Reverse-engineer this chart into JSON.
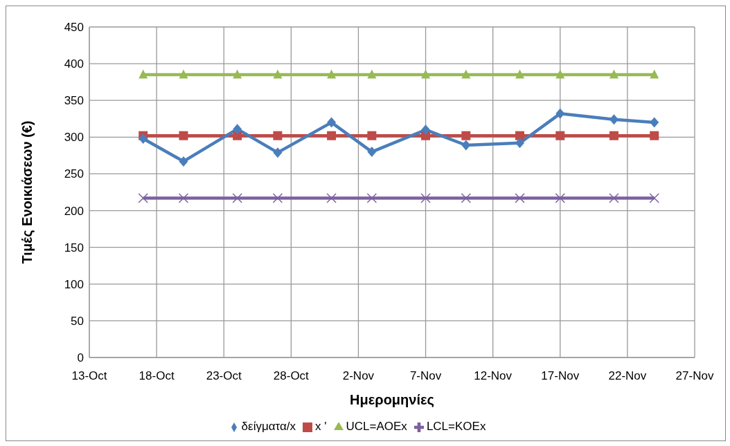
{
  "chart_data": {
    "type": "line",
    "xlabel": "Ημερομηνίες",
    "ylabel": "Τιμές Ενοικιάσεων (€)",
    "x": [
      "--10-17",
      "--10-20",
      "--10-24",
      "--10-27",
      "--10-31",
      "--11-03",
      "--11-07",
      "--11-10",
      "--11-14",
      "--11-17",
      "--11-21",
      "--11-24"
    ],
    "series": [
      {
        "name": "δείγματα/x",
        "color": "#4a7ebb",
        "marker": "diamond",
        "values": [
          298,
          267,
          311,
          279,
          320,
          280,
          310,
          289,
          292,
          332,
          324,
          320
        ]
      },
      {
        "name": "x '",
        "color": "#be4b48",
        "marker": "square",
        "values": [
          302,
          302,
          302,
          302,
          302,
          302,
          302,
          302,
          302,
          302,
          302,
          302
        ]
      },
      {
        "name": "UCL=AOEx",
        "color": "#98b954",
        "marker": "triangle",
        "values": [
          385,
          385,
          385,
          385,
          385,
          385,
          385,
          385,
          385,
          385,
          385,
          385
        ]
      },
      {
        "name": "LCL=KOEx",
        "color": "#7d60a0",
        "marker": "cross",
        "values": [
          217,
          217,
          217,
          217,
          217,
          217,
          217,
          217,
          217,
          217,
          217,
          217
        ]
      }
    ],
    "xlim": [
      "--10-13",
      "--11-27"
    ],
    "xticks": [
      {
        "value": "--10-13",
        "label": "13-Oct"
      },
      {
        "value": "--10-18",
        "label": "18-Oct"
      },
      {
        "value": "--10-23",
        "label": "23-Oct"
      },
      {
        "value": "--10-28",
        "label": "28-Oct"
      },
      {
        "value": "--11-02",
        "label": "2-Nov"
      },
      {
        "value": "--11-07",
        "label": "7-Nov"
      },
      {
        "value": "--11-12",
        "label": "12-Nov"
      },
      {
        "value": "--11-17",
        "label": "17-Nov"
      },
      {
        "value": "--11-22",
        "label": "22-Nov"
      },
      {
        "value": "--11-27",
        "label": "27-Nov"
      }
    ],
    "ylim": [
      0,
      450
    ],
    "yticks": [
      0,
      50,
      100,
      150,
      200,
      250,
      300,
      350,
      400,
      450
    ],
    "grid": true,
    "legend": "bottom",
    "line_style": "solid"
  }
}
